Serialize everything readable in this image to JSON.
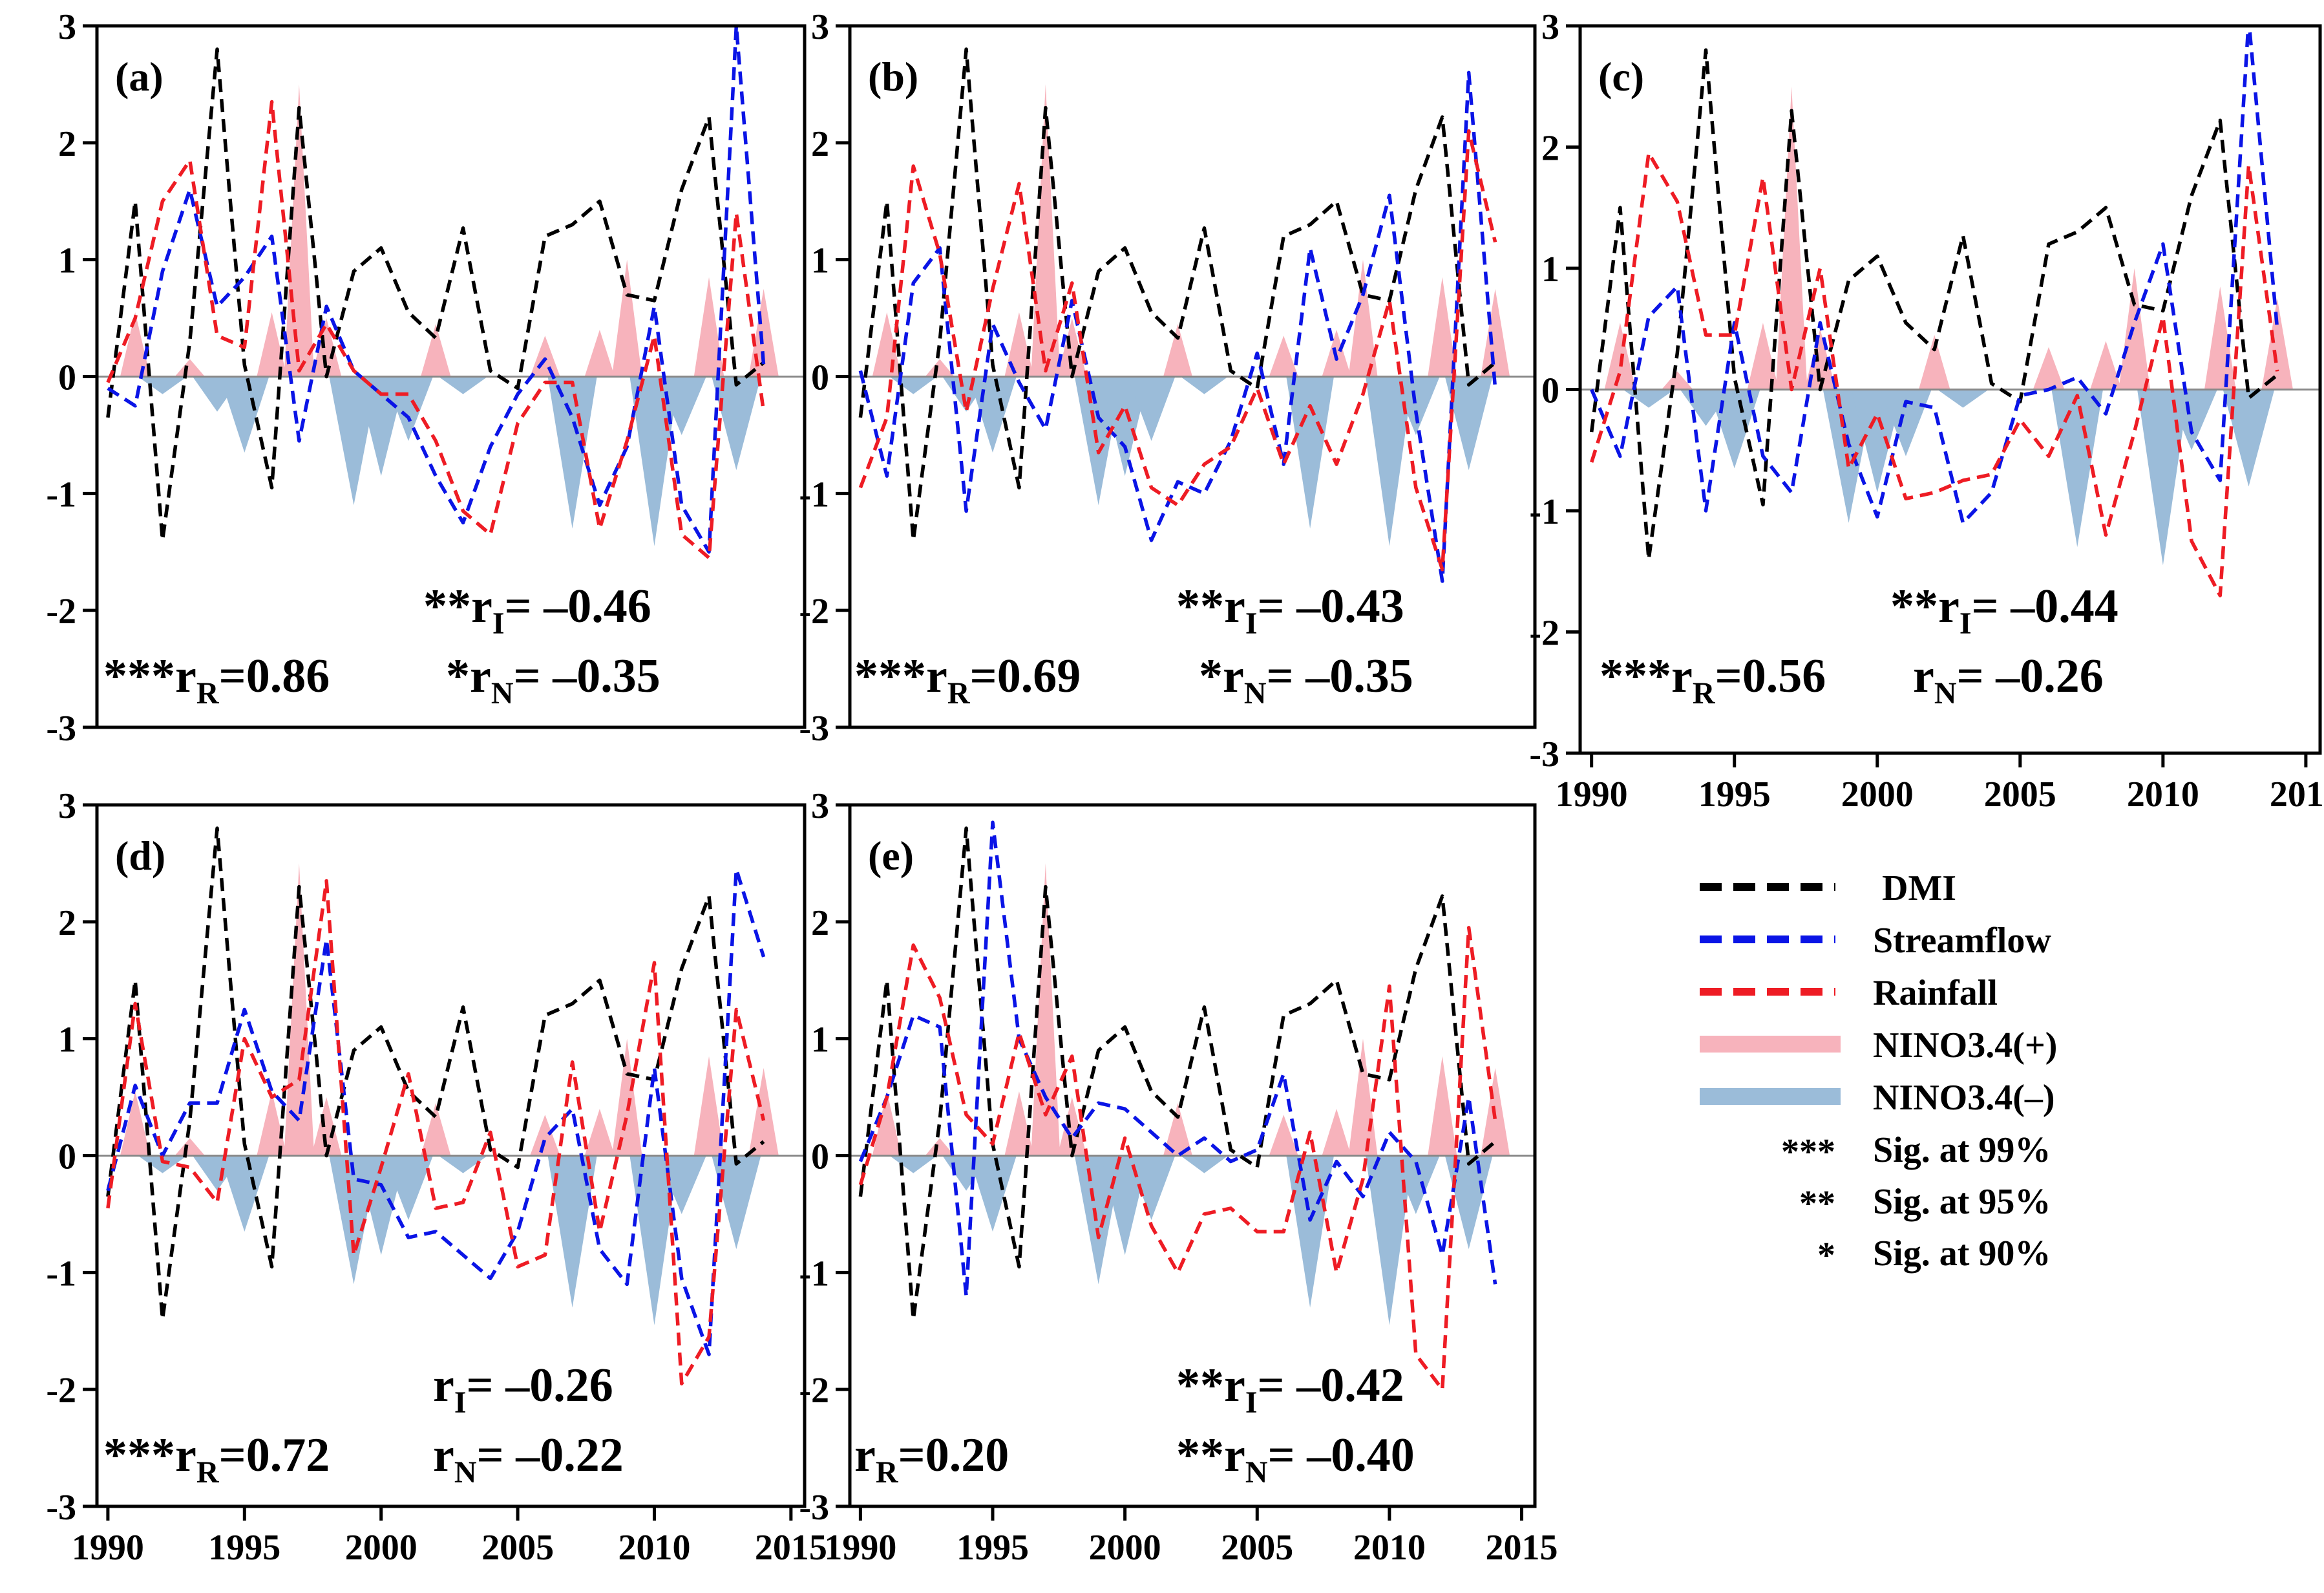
{
  "chart_data": {
    "type": "line",
    "title": "",
    "x": [
      1990,
      1991,
      1992,
      1993,
      1994,
      1995,
      1996,
      1997,
      1998,
      1999,
      2000,
      2001,
      2002,
      2003,
      2004,
      2005,
      2006,
      2007,
      2008,
      2009,
      2010,
      2011,
      2012,
      2013,
      2014
    ],
    "xticks": [
      1990,
      1995,
      2000,
      2005,
      2010,
      2015
    ],
    "yticks": [
      3,
      2,
      1,
      0,
      -1,
      -2,
      -3
    ],
    "ylim": [
      -3,
      3
    ],
    "xlim": [
      1989.6,
      2015.5
    ],
    "dmi": [
      -0.35,
      1.5,
      -1.4,
      0.3,
      2.8,
      0.1,
      -0.95,
      2.3,
      0.0,
      0.9,
      1.1,
      0.55,
      0.33,
      1.27,
      0.05,
      -0.1,
      1.2,
      1.3,
      1.5,
      0.7,
      0.65,
      1.6,
      2.22,
      -0.07,
      0.12
    ],
    "nino_pos": [
      0,
      0.55,
      0,
      0.15,
      0,
      0,
      0.55,
      2.5,
      0.5,
      0,
      0,
      0,
      0.45,
      0,
      0,
      0,
      0.35,
      0,
      0.4,
      1.0,
      0,
      0,
      0.85,
      0,
      0.75
    ],
    "nino_neg": [
      0,
      0,
      -0.15,
      0,
      -0.3,
      -0.65,
      0,
      0,
      0,
      -1.1,
      -0.85,
      -0.55,
      0,
      -0.15,
      0,
      0,
      0,
      -1.3,
      0,
      0,
      -1.45,
      -0.5,
      0,
      -0.8,
      0
    ],
    "panels": [
      {
        "label": "(a)",
        "streamflow": [
          -0.1,
          -0.25,
          0.9,
          1.6,
          0.6,
          0.85,
          1.2,
          -0.55,
          0.6,
          0.05,
          -0.15,
          -0.35,
          -0.85,
          -1.25,
          -0.6,
          -0.15,
          0.15,
          -0.35,
          -1.1,
          -0.6,
          0.6,
          -1.1,
          -1.5,
          3.0,
          0.1
        ],
        "rainfall": [
          -0.05,
          0.5,
          1.5,
          1.85,
          0.35,
          0.25,
          2.35,
          0.05,
          0.45,
          0.05,
          -0.15,
          -0.15,
          -0.55,
          -1.15,
          -1.35,
          -0.4,
          -0.05,
          -0.05,
          -1.3,
          -0.55,
          0.35,
          -1.35,
          -1.55,
          1.4,
          -0.3
        ],
        "stats": {
          "r_i_prefix": "**r",
          "r_i_value": "= –0.46",
          "r_r_prefix": "***r",
          "r_r_value": "=0.86",
          "r_n_prefix": "*r",
          "r_n_value": "= –0.35"
        }
      },
      {
        "label": "(b)",
        "streamflow": [
          0.05,
          -0.85,
          0.8,
          1.1,
          -1.15,
          0.45,
          -0.05,
          -0.45,
          0.65,
          -0.35,
          -0.6,
          -1.4,
          -0.9,
          -1.0,
          -0.55,
          0.2,
          -0.75,
          1.1,
          0.15,
          0.7,
          1.55,
          -0.3,
          -1.75,
          2.6,
          -0.1
        ],
        "rainfall": [
          -0.95,
          -0.35,
          1.8,
          1.05,
          -0.3,
          0.75,
          1.65,
          0.05,
          0.8,
          -0.65,
          -0.25,
          -0.95,
          -1.1,
          -0.75,
          -0.6,
          -0.1,
          -0.75,
          -0.25,
          -0.75,
          -0.15,
          0.65,
          -0.95,
          -1.65,
          2.1,
          1.15
        ],
        "stats": {
          "r_i_prefix": "**r",
          "r_i_value": "= –0.43",
          "r_r_prefix": "***r",
          "r_r_value": "=0.69",
          "r_n_prefix": "*r",
          "r_n_value": "= –0.35"
        }
      },
      {
        "label": "(c)",
        "streamflow": [
          0.0,
          -0.55,
          0.6,
          0.85,
          -1.0,
          0.55,
          -0.55,
          -0.85,
          0.55,
          -0.45,
          -1.05,
          -0.1,
          -0.15,
          -1.1,
          -0.85,
          -0.05,
          0.0,
          0.1,
          -0.2,
          0.55,
          1.2,
          -0.35,
          -0.75,
          3.05,
          0.5
        ],
        "rainfall": [
          -0.6,
          0.15,
          1.95,
          1.55,
          0.45,
          0.45,
          1.75,
          0.0,
          1.0,
          -0.65,
          -0.2,
          -0.9,
          -0.85,
          -0.75,
          -0.7,
          -0.25,
          -0.55,
          -0.05,
          -1.2,
          -0.35,
          0.6,
          -1.25,
          -1.7,
          1.85,
          0.15
        ],
        "stats": {
          "r_i_prefix": "**r",
          "r_i_value": "= –0.44",
          "r_r_prefix": "***r",
          "r_r_value": "=0.56",
          "r_n_prefix": "r",
          "r_n_value": "= –0.26"
        }
      },
      {
        "label": "(d)",
        "streamflow": [
          -0.3,
          0.6,
          0.0,
          0.45,
          0.45,
          1.25,
          0.55,
          0.3,
          1.85,
          -0.2,
          -0.25,
          -0.7,
          -0.65,
          -0.85,
          -1.05,
          -0.65,
          0.15,
          0.4,
          -0.8,
          -1.1,
          0.75,
          -1.05,
          -1.7,
          2.45,
          1.7
        ],
        "rainfall": [
          -0.45,
          1.3,
          -0.05,
          -0.1,
          -0.4,
          1.0,
          0.5,
          0.65,
          2.35,
          -0.85,
          -0.1,
          0.7,
          -0.45,
          -0.4,
          0.2,
          -0.95,
          -0.85,
          0.8,
          -0.65,
          0.35,
          1.65,
          -1.95,
          -1.55,
          1.25,
          0.3
        ],
        "stats": {
          "r_i_prefix": "r",
          "r_i_value": "= –0.26",
          "r_r_prefix": "***r",
          "r_r_value": "=0.72",
          "r_n_prefix": "r",
          "r_n_value": "= –0.22"
        }
      },
      {
        "label": "(e)",
        "streamflow": [
          -0.05,
          0.5,
          1.2,
          1.1,
          -1.2,
          2.85,
          1.0,
          0.5,
          0.15,
          0.45,
          0.4,
          0.2,
          0.0,
          0.15,
          -0.05,
          0.05,
          0.7,
          -0.55,
          -0.05,
          -0.35,
          0.2,
          -0.05,
          -0.85,
          0.5,
          -1.1
        ],
        "rainfall": [
          -0.25,
          0.5,
          1.8,
          1.35,
          0.35,
          0.1,
          1.05,
          0.35,
          0.85,
          -0.7,
          0.15,
          -0.6,
          -1.0,
          -0.5,
          -0.45,
          -0.65,
          -0.65,
          0.2,
          -1.0,
          -0.2,
          1.45,
          -1.7,
          -2.0,
          1.95,
          0.3
        ],
        "stats": {
          "r_i_prefix": "**r",
          "r_i_value": "= –0.42",
          "r_r_prefix": "r",
          "r_r_value": "=0.20",
          "r_n_prefix": "**r",
          "r_n_value": "= –0.40"
        }
      }
    ],
    "sub_i": "I",
    "sub_r": "R",
    "sub_n": "N",
    "colors": {
      "dmi": "#000000",
      "streamflow": "#0a14e6",
      "rainfall": "#ee1c24",
      "nino_pos": "#f7b3bc",
      "nino_neg": "#9bbcd9"
    }
  },
  "legend": {
    "dmi": "DMI",
    "streamflow": "Streamflow",
    "rainfall": "Rainfall",
    "nino_pos": "NINO3.4(+)",
    "nino_neg": "NINO3.4(–)",
    "sig99_mark": "***",
    "sig99": "Sig. at 99%",
    "sig95_mark": "**",
    "sig95": "Sig. at 95%",
    "sig90_mark": "*",
    "sig90": "Sig. at 90%"
  }
}
